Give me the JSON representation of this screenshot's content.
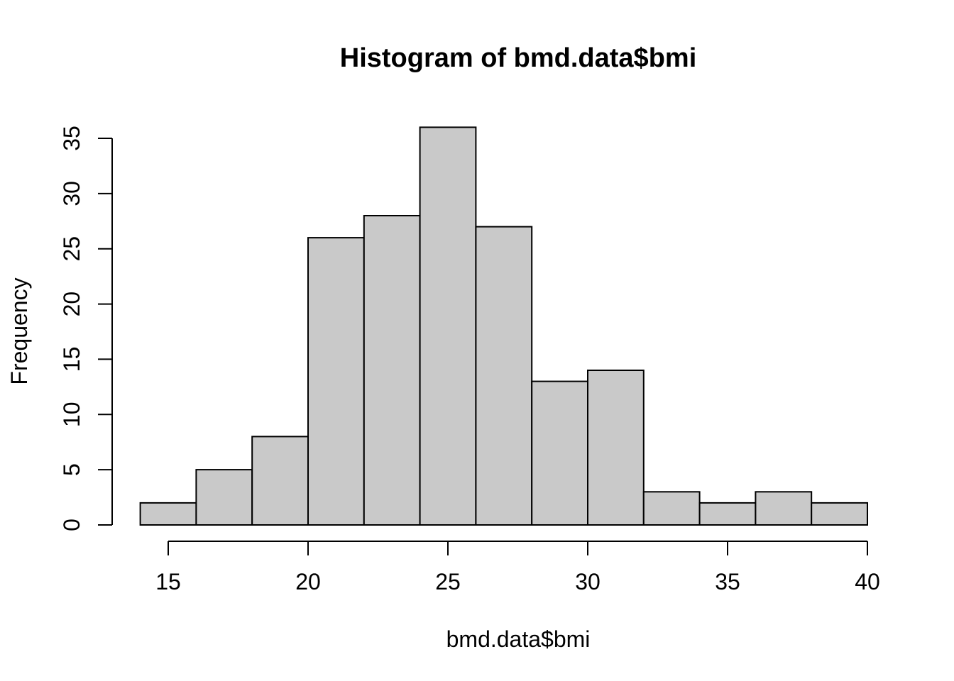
{
  "chart_data": {
    "type": "bar",
    "subtype": "histogram",
    "title": "Histogram of bmd.data$bmi",
    "xlabel": "bmd.data$bmi",
    "ylabel": "Frequency",
    "bin_edges": [
      14,
      16,
      18,
      20,
      22,
      24,
      26,
      28,
      30,
      32,
      34,
      36,
      38,
      40
    ],
    "values": [
      2,
      5,
      8,
      26,
      28,
      36,
      27,
      13,
      14,
      3,
      2,
      3,
      2
    ],
    "x_ticks": [
      15,
      20,
      25,
      30,
      35,
      40
    ],
    "y_ticks": [
      0,
      5,
      10,
      15,
      20,
      25,
      30,
      35
    ],
    "xlim": [
      14,
      40
    ],
    "ylim": [
      0,
      36
    ],
    "grid": false,
    "legend": null,
    "colors": {
      "bar_fill": "#C9C9C9",
      "bar_stroke": "#000000",
      "axis": "#000000",
      "background": "#FFFFFF"
    }
  }
}
